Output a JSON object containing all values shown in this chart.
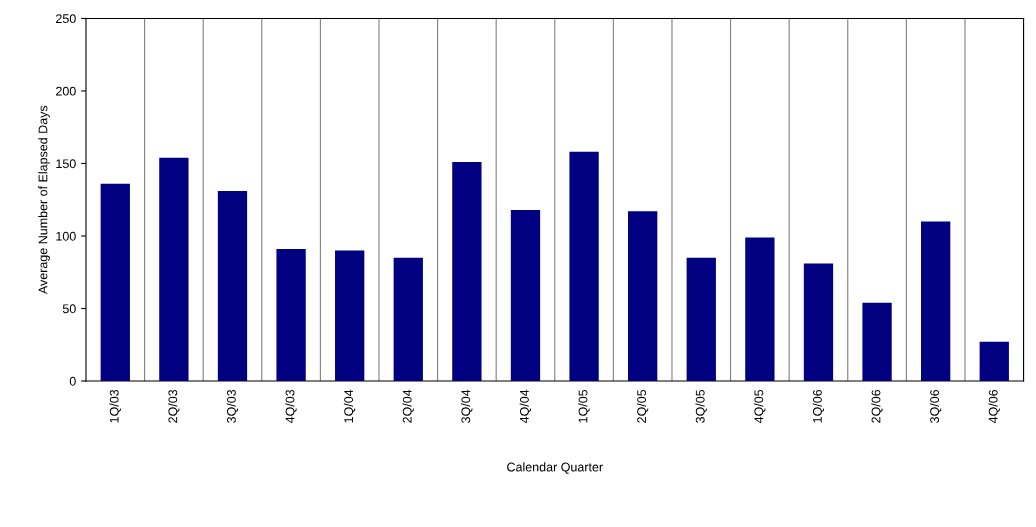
{
  "chart_data": {
    "type": "bar",
    "xlabel": "Calendar Quarter",
    "ylabel": "Average Number of Elapsed Days",
    "categories": [
      "1Q/03",
      "2Q/03",
      "3Q/03",
      "4Q/03",
      "1Q/04",
      "2Q/04",
      "3Q/04",
      "4Q/04",
      "1Q/05",
      "2Q/05",
      "3Q/05",
      "4Q/05",
      "1Q/06",
      "2Q/06",
      "3Q/06",
      "4Q/06"
    ],
    "values": [
      136,
      154,
      131,
      91,
      90,
      85,
      151,
      118,
      158,
      117,
      85,
      99,
      81,
      54,
      110,
      27
    ],
    "color": "#000080",
    "ylim": [
      0,
      250
    ],
    "yticks": [
      0,
      50,
      100,
      150,
      200,
      250
    ],
    "grid": "x"
  }
}
